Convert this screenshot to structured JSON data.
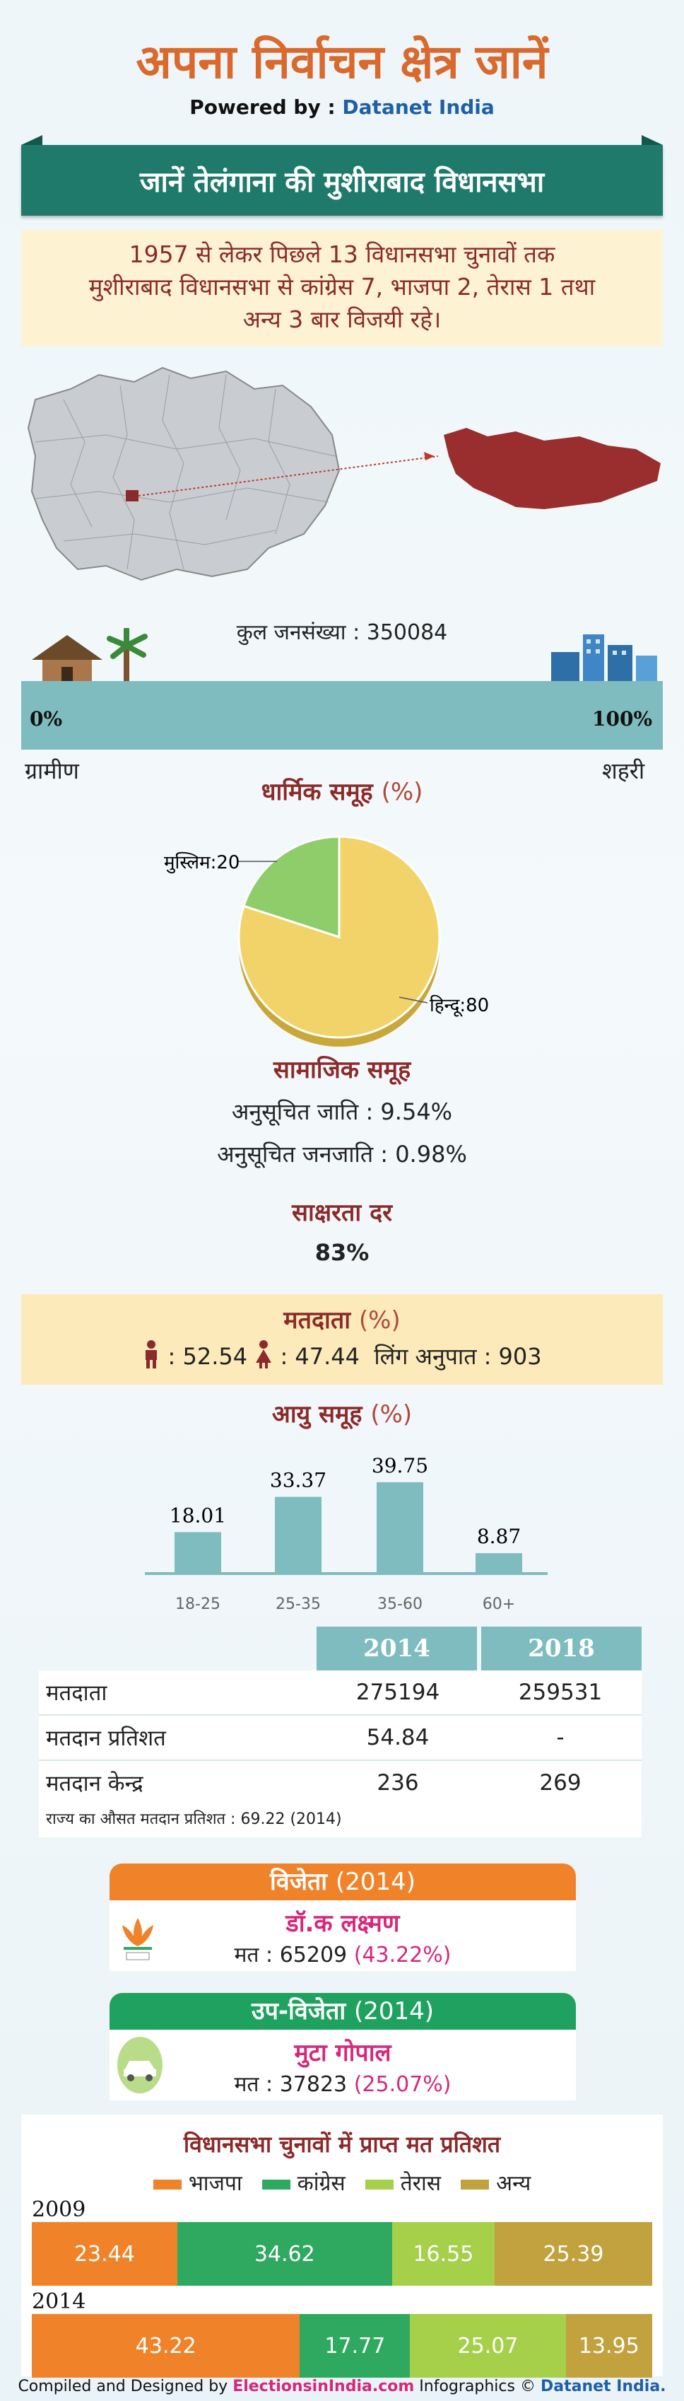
{
  "header": {
    "title": "अपना निर्वाचन क्षेत्र जानें",
    "powered_prefix": "Powered by : ",
    "powered_brand": "Datanet India"
  },
  "banner": {
    "text": "जानें तेलंगाना की मुशीराबाद विधानसभा"
  },
  "summary": {
    "line1": "1957 से लेकर पिछले 13 विधानसभा चुनावों तक",
    "line2": "मुशीराबाद विधानसभा से कांग्रेस 7, भाजपा 2, तेरास 1 तथा",
    "line3": "अन्य 3 बार विजयी रहे।"
  },
  "population": {
    "label": "कुल जनसंख्या : 350084",
    "left_pct": "0%",
    "right_pct": "100%",
    "rural": "ग्रामीण",
    "urban": "शहरी",
    "urban_share": 1.0
  },
  "religion": {
    "title": "धार्मिक समूह",
    "unit": "(%)",
    "slices": [
      {
        "label": "मुस्लिम:20",
        "value": 20,
        "color": "#8fcd6a"
      },
      {
        "label": "हिन्दू:80",
        "value": 80,
        "color": "#f2d36a"
      }
    ]
  },
  "social": {
    "title": "सामाजिक समूह",
    "sc": "अनुसूचित जाति :   9.54%",
    "st": "अनुसूचित जनजाति :   0.98%"
  },
  "literacy": {
    "title": "साक्षरता दर",
    "value": "83%"
  },
  "voters": {
    "title": "मतदाता",
    "unit": "(%)",
    "male": ": 52.54",
    "female": ": 47.44",
    "sex_ratio": "लिंग अनुपात : 903",
    "male_color": "#8b2a2a",
    "female_color": "#8b2a2a"
  },
  "age": {
    "title": "आयु समूह",
    "unit": "(%)"
  },
  "chart_data": {
    "type": "bar",
    "categories": [
      "18-25",
      "25-35",
      "35-60",
      "60+"
    ],
    "values": [
      18.01,
      33.37,
      39.75,
      8.87
    ],
    "ylim": [
      0,
      40
    ]
  },
  "stats": {
    "col_2014": "2014",
    "col_2018": "2018",
    "rows": [
      {
        "label": "मतदाता",
        "v2014": "275194",
        "v2018": "259531"
      },
      {
        "label": "मतदान प्रतिशत",
        "v2014": "54.84",
        "v2018": "-"
      },
      {
        "label": "मतदान केन्द्र",
        "v2014": "236",
        "v2018": "269"
      }
    ],
    "note": "राज्य का औसत मतदान प्रतिशत : 69.22 (2014)"
  },
  "winner": {
    "head": "विजेता",
    "year": "(2014)",
    "name": "डॉ.क लक्ष्मण",
    "vote_prefix": "मत : 65209",
    "vote_pct": "(43.22%)",
    "color": "#f0832a",
    "party_icon": "lotus-icon"
  },
  "runner": {
    "head": "उप-विजेता",
    "year": "(2014)",
    "name": "मुटा गोपाल",
    "vote_prefix": "मत : 37823",
    "vote_pct": "(25.07%)",
    "color": "#1fa260",
    "party_icon": "car-icon"
  },
  "vote_share": {
    "title": "विधानसभा चुनावों में प्राप्त मत प्रतिशत",
    "legend": [
      {
        "label": "भाजपा",
        "color": "#f0832a"
      },
      {
        "label": "कांग्रेस",
        "color": "#2ea95f"
      },
      {
        "label": "तेरास",
        "color": "#a6d04a"
      },
      {
        "label": "अन्य",
        "color": "#c1a23e"
      }
    ],
    "years": [
      {
        "year": "2009",
        "values": [
          {
            "v": 23.44,
            "t": "23.44",
            "color": "#f0832a"
          },
          {
            "v": 34.62,
            "t": "34.62",
            "color": "#2ea95f"
          },
          {
            "v": 16.55,
            "t": "16.55",
            "color": "#a6d04a"
          },
          {
            "v": 25.39,
            "t": "25.39",
            "color": "#c1a23e"
          }
        ]
      },
      {
        "year": "2014",
        "values": [
          {
            "v": 43.22,
            "t": "43.22",
            "color": "#f0832a"
          },
          {
            "v": 17.77,
            "t": "17.77",
            "color": "#2ea95f"
          },
          {
            "v": 25.07,
            "t": "25.07",
            "color": "#a6d04a"
          },
          {
            "v": 13.95,
            "t": "13.95",
            "color": "#c1a23e"
          }
        ]
      }
    ]
  },
  "footer": {
    "prefix": "Compiled and Designed by ",
    "site": "ElectionsinIndia.com",
    "mid": " Infographics © ",
    "brand": "Datanet India."
  }
}
